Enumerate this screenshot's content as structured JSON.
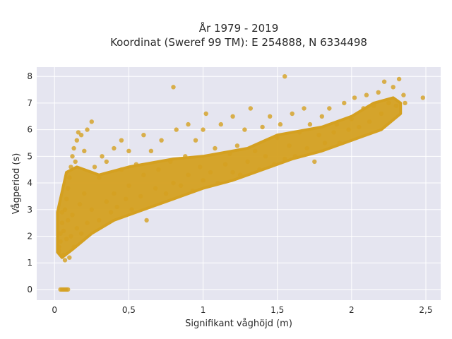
{
  "chart_data": {
    "type": "scatter",
    "title": "År 1979 - 2019",
    "subtitle": "Koordinat (Sweref 99 TM): E 254888, N 6334498",
    "xlabel": "Signifikant våghöjd (m)",
    "ylabel": "Vågperiod (s)",
    "xlim": [
      -0.12,
      2.6
    ],
    "ylim": [
      -0.4,
      8.35
    ],
    "x_ticks": [
      0,
      0.5,
      1,
      1.5,
      2,
      2.5
    ],
    "x_tick_labels": [
      "0",
      "0,5",
      "1",
      "1,5",
      "2",
      "2,5"
    ],
    "y_ticks": [
      0,
      1,
      2,
      3,
      4,
      5,
      6,
      7,
      8
    ],
    "y_tick_labels": [
      "0",
      "1",
      "2",
      "3",
      "4",
      "5",
      "6",
      "7",
      "8"
    ],
    "grid": true,
    "legend": "none",
    "colors": {
      "marker": "#d4a020",
      "plot_bg": "#e5e5f0",
      "grid": "#ffffff"
    },
    "points": [
      [
        0.03,
        1.45
      ],
      [
        0.03,
        1.6
      ],
      [
        0.04,
        1.8
      ],
      [
        0.04,
        2.1
      ],
      [
        0.05,
        2.5
      ],
      [
        0.05,
        2.9
      ],
      [
        0.06,
        1.3
      ],
      [
        0.06,
        2.2
      ],
      [
        0.07,
        3.0
      ],
      [
        0.07,
        1.1
      ],
      [
        0.08,
        3.4
      ],
      [
        0.08,
        1.9
      ],
      [
        0.09,
        3.8
      ],
      [
        0.09,
        2.6
      ],
      [
        0.1,
        4.2
      ],
      [
        0.1,
        1.2
      ],
      [
        0.11,
        4.6
      ],
      [
        0.11,
        2.0
      ],
      [
        0.12,
        5.0
      ],
      [
        0.12,
        2.8
      ],
      [
        0.13,
        5.3
      ],
      [
        0.13,
        1.6
      ],
      [
        0.14,
        4.8
      ],
      [
        0.15,
        5.6
      ],
      [
        0.15,
        2.3
      ],
      [
        0.16,
        5.9
      ],
      [
        0.17,
        3.2
      ],
      [
        0.18,
        5.8
      ],
      [
        0.18,
        2.1
      ],
      [
        0.2,
        5.2
      ],
      [
        0.2,
        3.6
      ],
      [
        0.22,
        6.0
      ],
      [
        0.22,
        2.5
      ],
      [
        0.25,
        6.3
      ],
      [
        0.25,
        3.0
      ],
      [
        0.27,
        4.6
      ],
      [
        0.3,
        4.2
      ],
      [
        0.3,
        2.6
      ],
      [
        0.32,
        5.0
      ],
      [
        0.35,
        3.3
      ],
      [
        0.35,
        4.8
      ],
      [
        0.38,
        2.9
      ],
      [
        0.4,
        5.3
      ],
      [
        0.4,
        3.6
      ],
      [
        0.42,
        3.1
      ],
      [
        0.45,
        4.5
      ],
      [
        0.45,
        5.6
      ],
      [
        0.48,
        3.4
      ],
      [
        0.5,
        3.9
      ],
      [
        0.5,
        5.2
      ],
      [
        0.52,
        3.0
      ],
      [
        0.55,
        4.7
      ],
      [
        0.58,
        3.5
      ],
      [
        0.6,
        5.8
      ],
      [
        0.6,
        4.3
      ],
      [
        0.62,
        2.6
      ],
      [
        0.65,
        5.2
      ],
      [
        0.68,
        3.8
      ],
      [
        0.7,
        4.5
      ],
      [
        0.72,
        5.6
      ],
      [
        0.75,
        3.6
      ],
      [
        0.78,
        4.8
      ],
      [
        0.8,
        7.6
      ],
      [
        0.8,
        4.0
      ],
      [
        0.82,
        6.0
      ],
      [
        0.85,
        3.9
      ],
      [
        0.88,
        5.0
      ],
      [
        0.9,
        6.2
      ],
      [
        0.9,
        4.3
      ],
      [
        0.93,
        3.7
      ],
      [
        0.95,
        5.6
      ],
      [
        0.98,
        4.6
      ],
      [
        1.0,
        6.0
      ],
      [
        1.0,
        4.1
      ],
      [
        1.02,
        6.6
      ],
      [
        1.05,
        4.4
      ],
      [
        1.08,
        5.3
      ],
      [
        1.1,
        4.0
      ],
      [
        1.12,
        6.2
      ],
      [
        1.15,
        4.7
      ],
      [
        1.18,
        5.1
      ],
      [
        1.2,
        6.5
      ],
      [
        1.2,
        4.4
      ],
      [
        1.23,
        5.4
      ],
      [
        1.25,
        4.3
      ],
      [
        1.28,
        6.0
      ],
      [
        1.3,
        4.8
      ],
      [
        1.32,
        6.8
      ],
      [
        1.35,
        5.2
      ],
      [
        1.38,
        4.5
      ],
      [
        1.4,
        6.1
      ],
      [
        1.42,
        5.0
      ],
      [
        1.45,
        6.5
      ],
      [
        1.48,
        4.7
      ],
      [
        1.5,
        5.7
      ],
      [
        1.52,
        6.2
      ],
      [
        1.55,
        8.0
      ],
      [
        1.55,
        4.9
      ],
      [
        1.58,
        5.4
      ],
      [
        1.6,
        6.6
      ],
      [
        1.62,
        5.0
      ],
      [
        1.65,
        5.9
      ],
      [
        1.68,
        6.8
      ],
      [
        1.7,
        5.3
      ],
      [
        1.72,
        6.2
      ],
      [
        1.75,
        4.8
      ],
      [
        1.78,
        5.8
      ],
      [
        1.8,
        6.5
      ],
      [
        1.82,
        5.5
      ],
      [
        1.85,
        6.8
      ],
      [
        1.88,
        5.9
      ],
      [
        1.9,
        6.2
      ],
      [
        1.92,
        5.5
      ],
      [
        1.95,
        7.0
      ],
      [
        1.98,
        6.0
      ],
      [
        2.0,
        6.4
      ],
      [
        2.02,
        7.2
      ],
      [
        2.05,
        6.1
      ],
      [
        2.08,
        6.8
      ],
      [
        2.1,
        7.3
      ],
      [
        2.12,
        6.3
      ],
      [
        2.15,
        6.9
      ],
      [
        2.18,
        7.4
      ],
      [
        2.2,
        6.6
      ],
      [
        2.22,
        7.8
      ],
      [
        2.25,
        7.0
      ],
      [
        2.28,
        7.6
      ],
      [
        2.3,
        6.9
      ],
      [
        2.32,
        7.9
      ],
      [
        2.35,
        7.3
      ],
      [
        2.36,
        7.0
      ],
      [
        2.48,
        7.2
      ],
      [
        0.04,
        0.0
      ],
      [
        0.05,
        0.0
      ],
      [
        0.06,
        0.0
      ],
      [
        0.07,
        0.0
      ],
      [
        0.08,
        0.0
      ],
      [
        0.09,
        0.0
      ]
    ]
  }
}
